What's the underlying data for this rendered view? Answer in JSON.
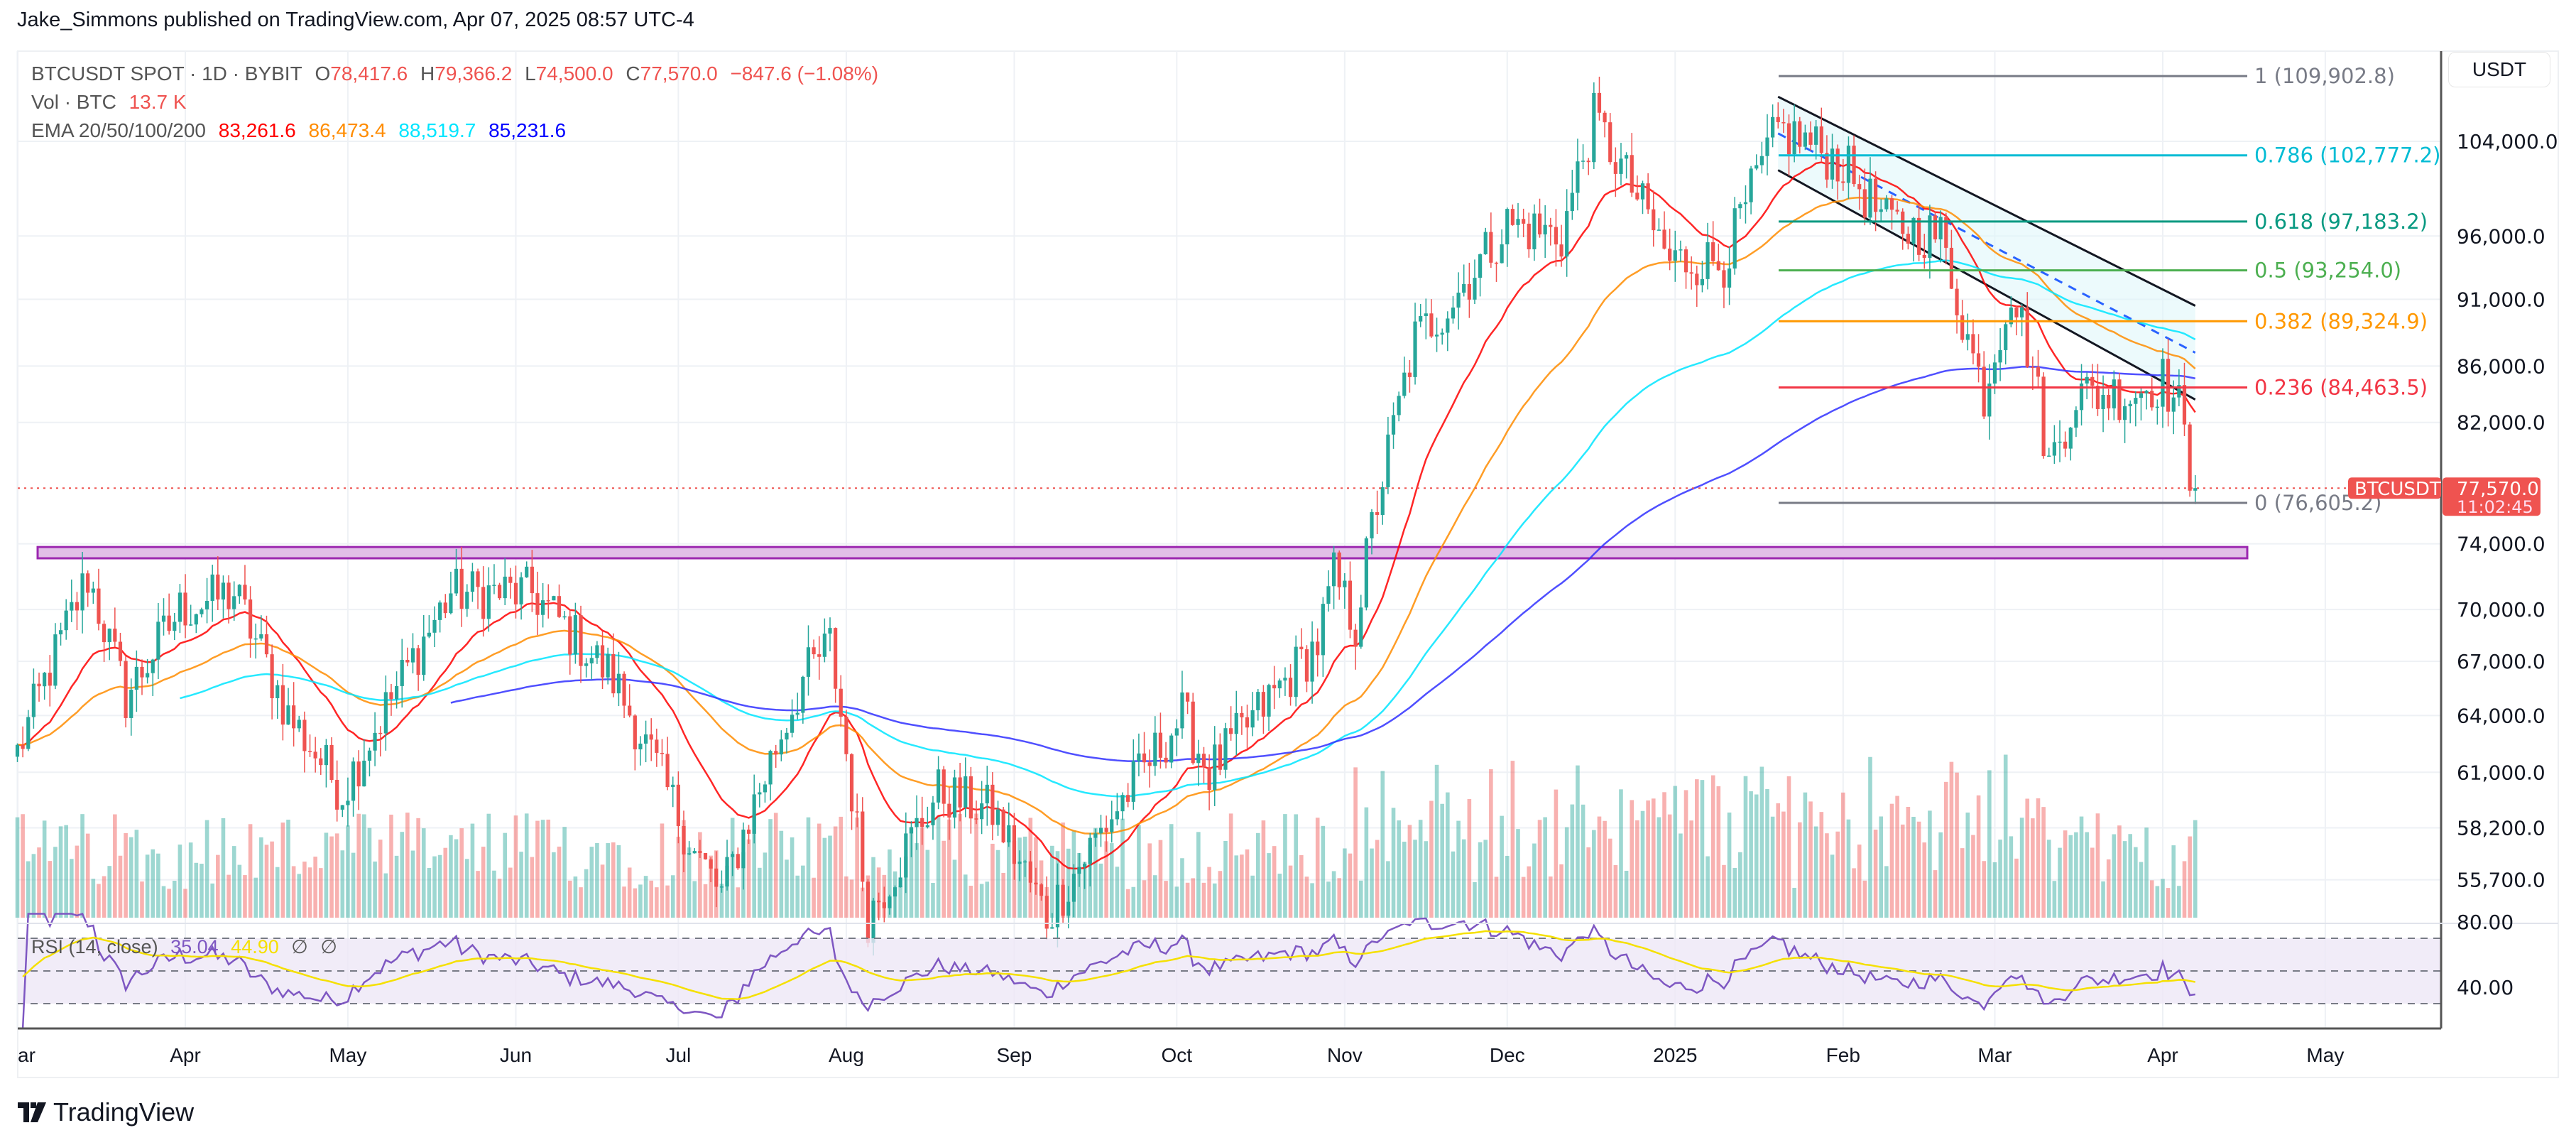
{
  "header": {
    "published": "Jake_Simmons published on TradingView.com, Apr 07, 2025 08:57 UTC-4"
  },
  "legend": {
    "symbol": "BTCUSDT SPOT · 1D · BYBIT",
    "o_label": "O",
    "open": "78,417.6",
    "h_label": "H",
    "high": "79,366.2",
    "l_label": "L",
    "low": "74,500.0",
    "c_label": "C",
    "close": "77,570.0",
    "change": "−847.6 (−1.08%)",
    "vol_label": "Vol · BTC",
    "vol": "13.7 K",
    "ema_label": "EMA 20/50/100/200",
    "ema20": "83,261.6",
    "ema50": "86,473.4",
    "ema100": "88,519.7",
    "ema200": "85,231.6"
  },
  "rsi_legend": {
    "label": "RSI (14, close)",
    "rsi": "35.04",
    "ma": "44.90",
    "na1": "∅",
    "na2": "∅"
  },
  "price_axis": {
    "currency": "USDT",
    "ticks": [
      "104,000.0",
      "96,000.0",
      "91,000.0",
      "86,000.0",
      "82,000.0",
      "74,000.0",
      "70,000.0",
      "67,000.0",
      "64,000.0",
      "61,000.0",
      "58,200.0",
      "55,700.0"
    ],
    "tick_values": [
      104000,
      96000,
      91000,
      86000,
      82000,
      74000,
      70000,
      67000,
      64000,
      61000,
      58200,
      55700
    ],
    "rsi_ticks": [
      "80.00",
      "40.00"
    ],
    "rsi_tick_values": [
      80,
      40
    ],
    "last_symbol": "BTCUSDT",
    "last_price": "77,570.0",
    "countdown": "11:02:45",
    "last_value": 77570
  },
  "time_axis": [
    {
      "label": "ar",
      "day": 0
    },
    {
      "label": "Apr",
      "day": 31
    },
    {
      "label": "May",
      "day": 61
    },
    {
      "label": "Jun",
      "day": 92
    },
    {
      "label": "Jul",
      "day": 122
    },
    {
      "label": "Aug",
      "day": 153
    },
    {
      "label": "Sep",
      "day": 184
    },
    {
      "label": "Oct",
      "day": 214
    },
    {
      "label": "Nov",
      "day": 245
    },
    {
      "label": "Dec",
      "day": 275
    },
    {
      "label": "2025",
      "day": 306
    },
    {
      "label": "Feb",
      "day": 337
    },
    {
      "label": "Mar",
      "day": 365
    },
    {
      "label": "Apr",
      "day": 396
    },
    {
      "label": "May",
      "day": 426
    }
  ],
  "fib": [
    {
      "label": "1 (109,902.8)",
      "value": 109902.8,
      "color": "#787b86"
    },
    {
      "label": "0.786 (102,777.2)",
      "value": 102777.2,
      "color": "#00bcd4"
    },
    {
      "label": "0.618 (97,183.2)",
      "value": 97183.2,
      "color": "#089981"
    },
    {
      "label": "0.5 (93,254.0)",
      "value": 93254.0,
      "color": "#4caf50"
    },
    {
      "label": "0.382 (89,324.9)",
      "value": 89324.9,
      "color": "#ff9800"
    },
    {
      "label": "0.236 (84,463.5)",
      "value": 84463.5,
      "color": "#f23645"
    },
    {
      "label": "0 (76,605.2)",
      "value": 76605.2,
      "color": "#787b86"
    }
  ],
  "colors": {
    "up": "#26a69a",
    "down": "#ef5350",
    "ema20": "#ff0000",
    "ema50": "#ff8c00",
    "ema100": "#00e5ff",
    "ema200": "#3030ff",
    "rsi": "#7e57c2",
    "rsi_ma": "#f5e000",
    "zone": "#9c27b0"
  },
  "footer": {
    "brand": "TradingView"
  },
  "chart_data": {
    "type": "candlestick",
    "symbol": "BTCUSDT",
    "interval": "1D",
    "start_date": "2024-03-01",
    "close_keypoints": [
      [
        0,
        62000
      ],
      [
        13,
        72000
      ],
      [
        20,
        65000
      ],
      [
        30,
        70000
      ],
      [
        40,
        71000
      ],
      [
        50,
        64000
      ],
      [
        60,
        60000
      ],
      [
        80,
        71000
      ],
      [
        95,
        71000
      ],
      [
        110,
        66000
      ],
      [
        125,
        57000
      ],
      [
        130,
        55000
      ],
      [
        145,
        66000
      ],
      [
        150,
        68000
      ],
      [
        157,
        54000
      ],
      [
        170,
        60000
      ],
      [
        180,
        59000
      ],
      [
        190,
        54000
      ],
      [
        200,
        58000
      ],
      [
        215,
        64000
      ],
      [
        220,
        61000
      ],
      [
        240,
        68000
      ],
      [
        243,
        72000
      ],
      [
        247,
        69000
      ],
      [
        250,
        75000
      ],
      [
        258,
        88000
      ],
      [
        265,
        91000
      ],
      [
        275,
        97000
      ],
      [
        285,
        96000
      ],
      [
        291,
        106000
      ],
      [
        305,
        94000
      ],
      [
        315,
        94000
      ],
      [
        325,
        105000
      ],
      [
        330,
        104000
      ],
      [
        337,
        102000
      ],
      [
        345,
        97000
      ],
      [
        355,
        96000
      ],
      [
        360,
        88000
      ],
      [
        363,
        84000
      ],
      [
        368,
        92000
      ],
      [
        372,
        86000
      ],
      [
        375,
        79000
      ],
      [
        380,
        84000
      ],
      [
        390,
        84000
      ],
      [
        396,
        85000
      ],
      [
        399,
        83000
      ],
      [
        401,
        78500
      ],
      [
        402,
        77570
      ]
    ],
    "support_zone": [
      73100,
      73800
    ],
    "channel": {
      "upper": [
        [
          325,
          108000
        ],
        [
          402,
          90500
        ]
      ],
      "lower": [
        [
          325,
          101500
        ],
        [
          402,
          83600
        ]
      ]
    },
    "yscale": "log"
  }
}
